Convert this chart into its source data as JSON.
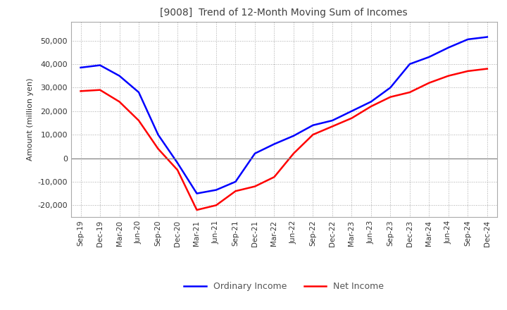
{
  "title": "[9008]  Trend of 12-Month Moving Sum of Incomes",
  "ylabel": "Amount (million yen)",
  "ylim": [
    -25000,
    58000
  ],
  "yticks": [
    -20000,
    -10000,
    0,
    10000,
    20000,
    30000,
    40000,
    50000
  ],
  "x_labels": [
    "Sep-19",
    "Dec-19",
    "Mar-20",
    "Jun-20",
    "Sep-20",
    "Dec-20",
    "Mar-21",
    "Jun-21",
    "Sep-21",
    "Dec-21",
    "Mar-22",
    "Jun-22",
    "Sep-22",
    "Dec-22",
    "Mar-23",
    "Jun-23",
    "Sep-23",
    "Dec-23",
    "Mar-24",
    "Jun-24",
    "Sep-24",
    "Dec-24"
  ],
  "ordinary_income": [
    38500,
    39500,
    35000,
    28000,
    10000,
    -2000,
    -15000,
    -13500,
    -10000,
    2000,
    6000,
    9500,
    14000,
    16000,
    20000,
    24000,
    30000,
    40000,
    43000,
    47000,
    50500,
    51500
  ],
  "net_income": [
    28500,
    29000,
    24000,
    16000,
    4000,
    -5000,
    -22000,
    -20000,
    -14000,
    -12000,
    -8000,
    2000,
    10000,
    13500,
    17000,
    22000,
    26000,
    28000,
    32000,
    35000,
    37000,
    38000
  ],
  "ordinary_color": "#0000FF",
  "net_color": "#FF0000",
  "line_width": 1.8,
  "grid_color": "#AAAAAA",
  "background_color": "#FFFFFF",
  "title_color": "#404040",
  "legend_labels": [
    "Ordinary Income",
    "Net Income"
  ],
  "legend_text_color": "#555555"
}
